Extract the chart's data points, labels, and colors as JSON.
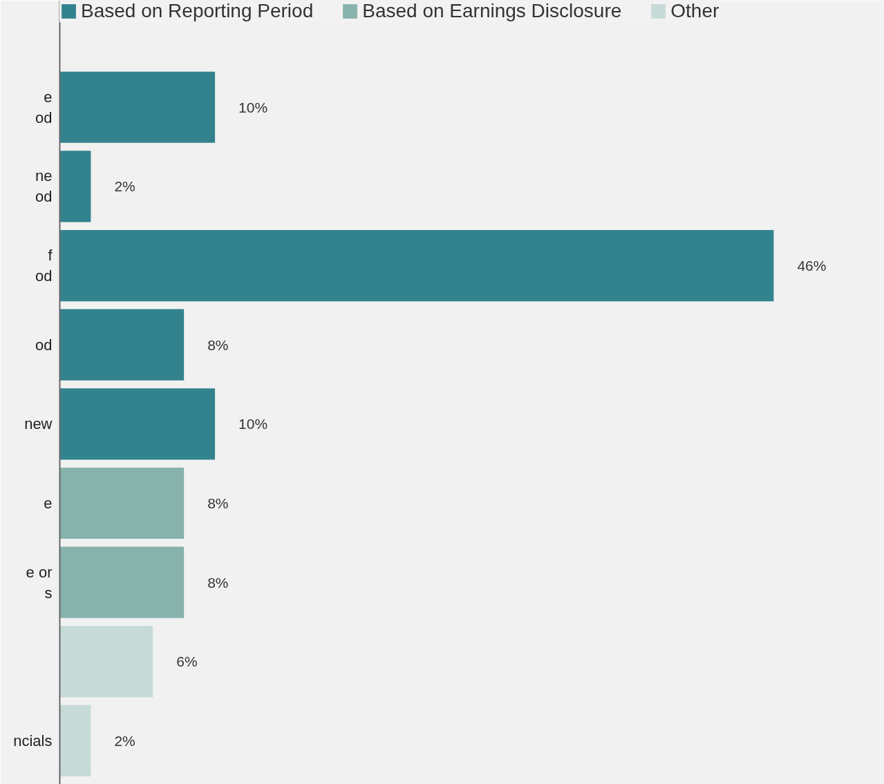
{
  "chart_data": {
    "type": "bar",
    "orientation": "horizontal",
    "categories": [
      "e\nod",
      "ne\nod",
      "f\nod",
      "od",
      "new",
      "e",
      "e or\ns",
      null,
      "ncials"
    ],
    "series": [
      {
        "name": "Based on Reporting Period",
        "color": "#33838f",
        "values": [
          10,
          2,
          46,
          8,
          10,
          null,
          null,
          null,
          null
        ],
        "value_labels": [
          "10%",
          "2%",
          "46%",
          "8%",
          "10%",
          null,
          null,
          null,
          null
        ]
      },
      {
        "name": "Based on Earnings Disclosure",
        "color": "#88b2ac",
        "values": [
          null,
          null,
          null,
          null,
          null,
          8,
          8,
          null,
          null
        ],
        "value_labels": [
          null,
          null,
          null,
          null,
          null,
          "8%",
          "8%",
          null,
          null
        ]
      },
      {
        "name": "Other",
        "color": "#c6dad8",
        "values": [
          null,
          null,
          null,
          null,
          null,
          null,
          null,
          6,
          2
        ],
        "value_labels": [
          null,
          null,
          null,
          null,
          null,
          null,
          null,
          "6%",
          "2%"
        ]
      }
    ],
    "legend": "top",
    "grid": false
  }
}
